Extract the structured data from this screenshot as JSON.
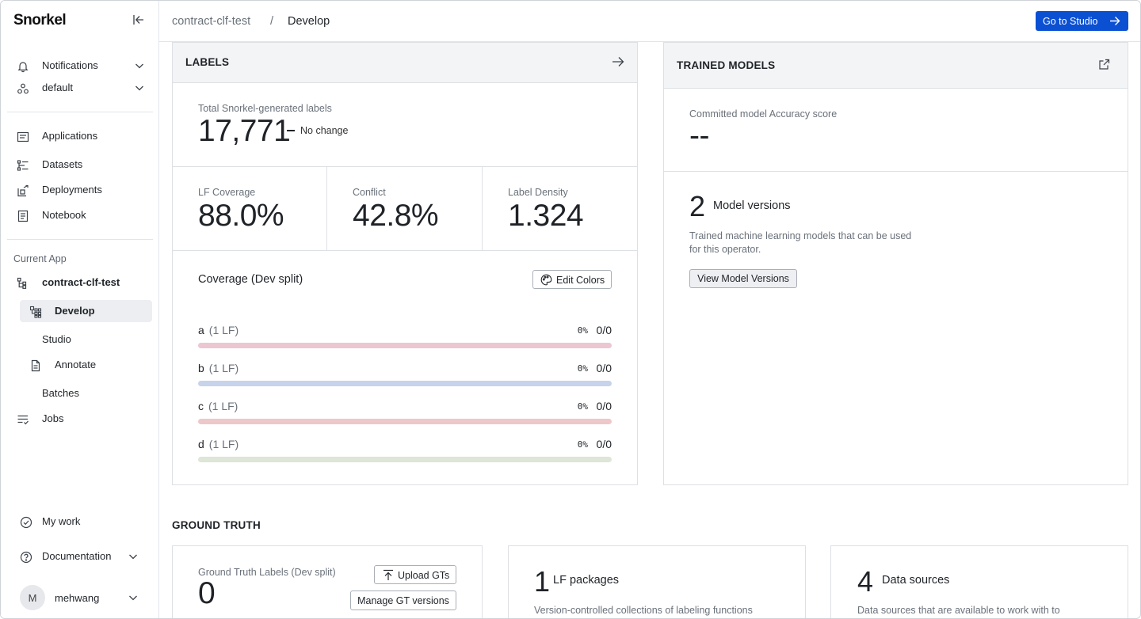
{
  "app": {
    "logo": "Snorkel"
  },
  "sidebar": {
    "top_items": [
      {
        "label": "Notifications",
        "icon": "bell-icon"
      },
      {
        "label": "default",
        "icon": "workspace-icon"
      }
    ],
    "nav_items": [
      {
        "label": "Applications",
        "icon": "applications-icon"
      },
      {
        "label": "Datasets",
        "icon": "datasets-icon"
      },
      {
        "label": "Deployments",
        "icon": "deployments-icon"
      },
      {
        "label": "Notebook",
        "icon": "notebook-icon"
      }
    ],
    "current_app_title": "Current App",
    "current_app_name": "contract-clf-test",
    "app_items": [
      {
        "label": "Develop",
        "active": true
      },
      {
        "label": "Studio"
      },
      {
        "label": "Annotate"
      },
      {
        "label": "Batches"
      }
    ],
    "jobs_label": "Jobs",
    "my_work_label": "My work",
    "documentation_label": "Documentation",
    "user": {
      "initial": "M",
      "name": "mehwang"
    }
  },
  "header": {
    "breadcrumb": [
      "contract-clf-test",
      "/",
      "Develop"
    ],
    "studio_button": "Go to Studio"
  },
  "labels_card": {
    "title": "LABELS",
    "total_label": "Total Snorkel-generated labels",
    "total_value": "17,771",
    "change_text": "No change",
    "metrics": [
      {
        "label": "LF Coverage",
        "value": "88.0%"
      },
      {
        "label": "Conflict",
        "value": "42.8%"
      },
      {
        "label": "Label Density",
        "value": "1.324"
      }
    ],
    "coverage_title": "Coverage (Dev split)",
    "edit_colors_button": "Edit Colors",
    "coverage_rows": [
      {
        "name": "a",
        "count": "(1 LF)",
        "pct": "0%",
        "frac": "0/0",
        "fill": 0,
        "color": "#ecc6d1"
      },
      {
        "name": "b",
        "count": "(1 LF)",
        "pct": "0%",
        "frac": "0/0",
        "fill": 0,
        "color": "#c7d3ea"
      },
      {
        "name": "c",
        "count": "(1 LF)",
        "pct": "0%",
        "frac": "0/0",
        "fill": 0,
        "color": "#eec7ca"
      },
      {
        "name": "d",
        "count": "(1 LF)",
        "pct": "0%",
        "frac": "0/0",
        "fill": 0,
        "color": "#dde6d7"
      }
    ]
  },
  "models_card": {
    "title": "TRAINED MODELS",
    "score_label": "Committed model Accuracy score",
    "score_value": "--",
    "versions_count": "2",
    "versions_label": "Model versions",
    "versions_desc_1": "Trained machine learning models that can be used",
    "versions_desc_2": "for this operator.",
    "view_button": "View Model Versions"
  },
  "ground_truth": {
    "section_title": "GROUND TRUTH",
    "gt_label": "Ground Truth Labels (Dev split)",
    "gt_value": "0",
    "upload_button": "Upload GTs",
    "manage_button": "Manage GT versions",
    "lf_count": "1",
    "lf_label": "LF packages",
    "lf_desc": "Version-controlled collections of labeling functions",
    "ds_count": "4",
    "ds_label": "Data sources",
    "ds_desc": "Data sources that are available to work with to"
  },
  "colors": {
    "accent": "#0b4fd3",
    "header_bg": "#f3f4f6"
  }
}
